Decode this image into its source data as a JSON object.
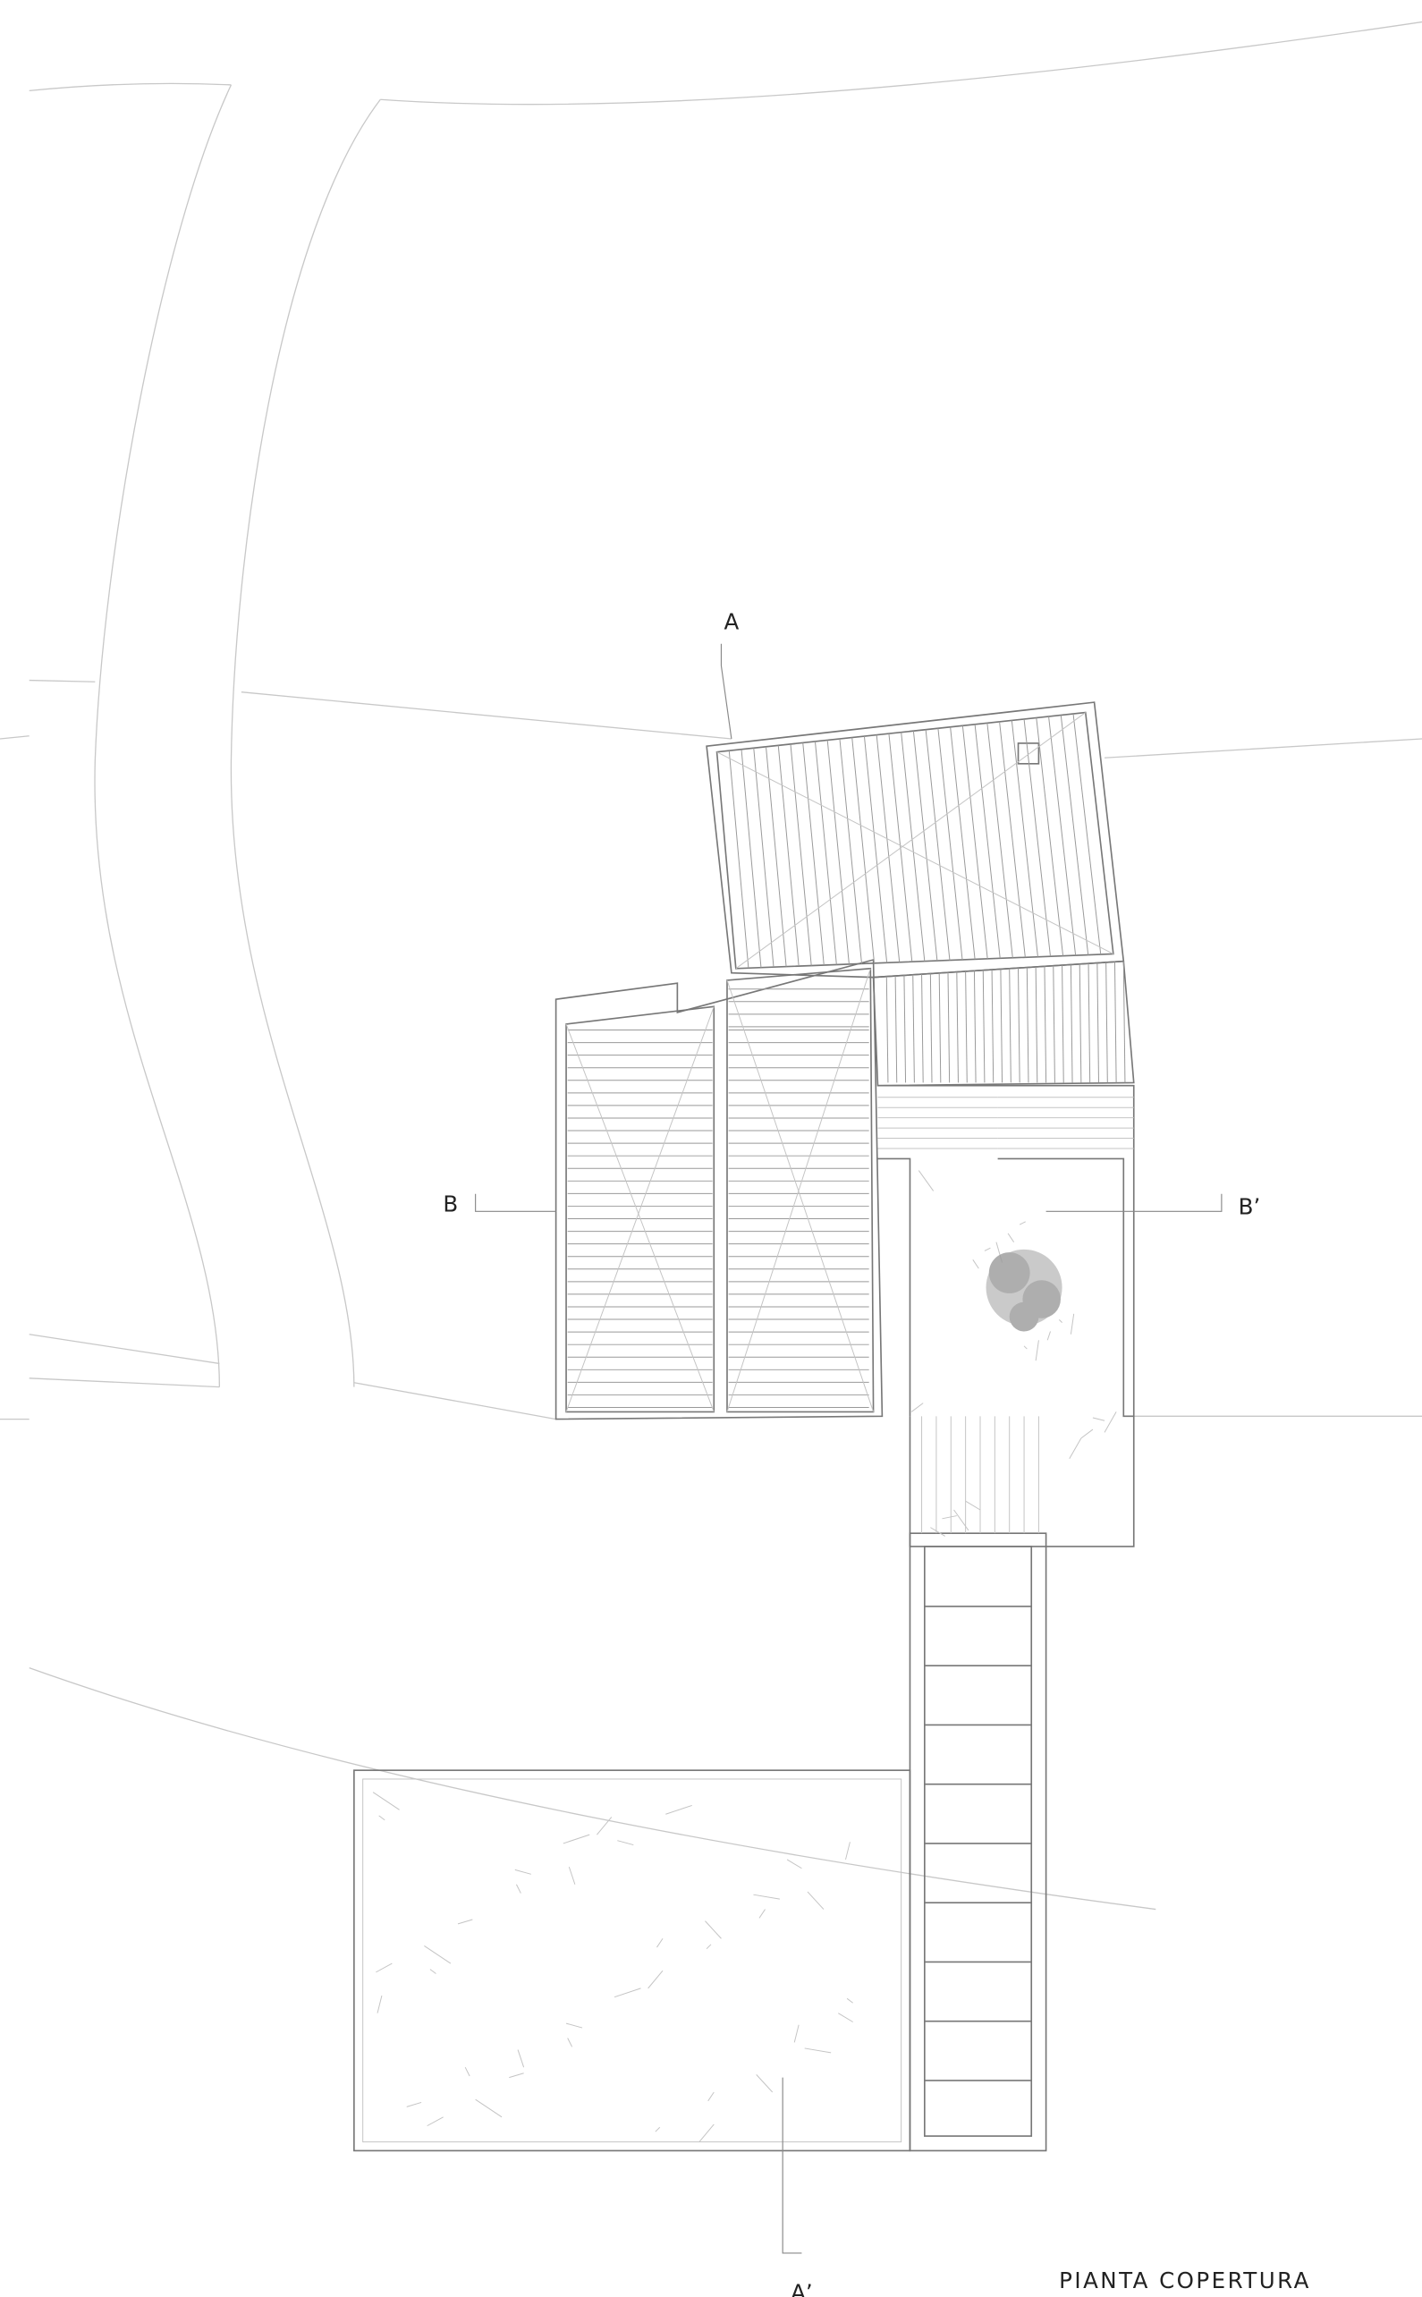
{
  "section_labels": {
    "a": "A",
    "b": "B",
    "b_prime": "B’",
    "a_prime": "A’"
  },
  "title": "PIANTA COPERTURA"
}
